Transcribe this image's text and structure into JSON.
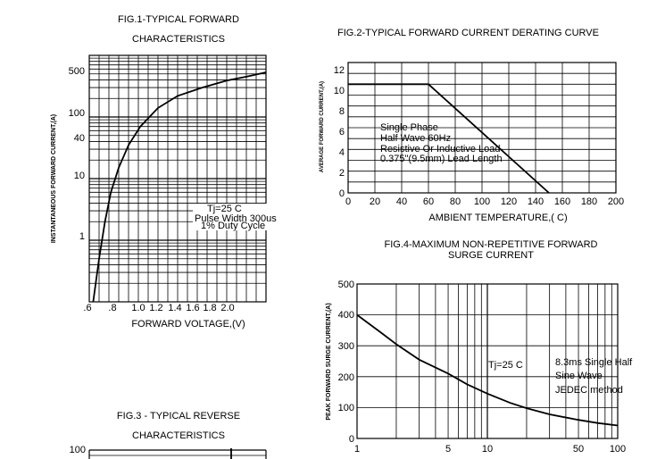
{
  "colors": {
    "grid": "#000000",
    "curve": "#000000",
    "background": "#ffffff"
  },
  "chart_data": [
    {
      "id": "fig1",
      "type": "line",
      "title": "FIG.1-TYPICAL FORWARD",
      "subtitle": "CHARACTERISTICS",
      "xlabel": "FORWARD VOLTAGE,(V)",
      "ylabel": "INSTANTANEOUS FORWARD CURRENT,(A)",
      "x_scale": "linear",
      "y_scale": "log",
      "xlim": [
        0.6,
        2.4
      ],
      "ylim": [
        0.1,
        1000
      ],
      "x_ticks": [
        ".6",
        ".8",
        "1.0",
        "1.2",
        "1.4",
        "1.6",
        "1.8",
        "2.0"
      ],
      "y_ticks": [
        "1",
        "10",
        "40",
        "100",
        "500"
      ],
      "grid": true,
      "annotations": [
        "Tj=25 C",
        "Pulse Width 300us",
        "1% Duty Cycle"
      ],
      "series": [
        {
          "x": [
            0.64,
            0.7,
            0.76,
            0.82,
            0.9,
            1.0,
            1.12,
            1.3,
            1.5,
            1.75,
            2.0,
            2.2,
            2.4
          ],
          "y": [
            0.1,
            0.5,
            2,
            6,
            15,
            35,
            70,
            140,
            220,
            300,
            390,
            450,
            530
          ]
        }
      ]
    },
    {
      "id": "fig2",
      "type": "line",
      "title": "FIG.2-TYPICAL FORWARD CURRENT DERATING CURVE",
      "xlabel": "AMBIENT TEMPERATURE,( C)",
      "ylabel": "AVERAGE FORWARD CURRENT,(A)",
      "xlim": [
        0,
        200
      ],
      "ylim": [
        0,
        12
      ],
      "x_ticks": [
        "0",
        "20",
        "40",
        "60",
        "80",
        "100",
        "120",
        "140",
        "160",
        "180",
        "200"
      ],
      "y_ticks": [
        "0",
        "2",
        "4",
        "6",
        "8",
        "10",
        "12"
      ],
      "grid": true,
      "annotations": [
        "Single Phase",
        "Half Wave 60Hz",
        "Resistive Or Inductive Load",
        "0.375\"(9.5mm) Lead Length"
      ],
      "series": [
        {
          "x": [
            0,
            60,
            150
          ],
          "y": [
            10,
            10,
            0
          ]
        }
      ]
    },
    {
      "id": "fig3",
      "type": "line",
      "title": "FIG.3 - TYPICAL REVERSE",
      "subtitle": "CHARACTERISTICS",
      "y_ticks": [
        "100"
      ],
      "grid": true
    },
    {
      "id": "fig4",
      "type": "line",
      "title": "FIG.4-MAXIMUM NON-REPETITIVE FORWARD",
      "subtitle": "SURGE CURRENT",
      "ylabel": "PEAK FORWARD SURGE CURRENT,(A)",
      "x_scale": "log",
      "xlim": [
        1,
        100
      ],
      "ylim": [
        0,
        500
      ],
      "x_ticks": [
        "1",
        "5",
        "10",
        "50",
        "100"
      ],
      "y_ticks": [
        "0",
        "100",
        "200",
        "300",
        "400",
        "500"
      ],
      "grid": true,
      "annotations": [
        "Tj=25 C",
        "8.3ms Single Half",
        "Sine Wave",
        "JEDEC method"
      ],
      "series": [
        {
          "x": [
            1,
            1.5,
            2,
            3,
            5,
            7,
            10,
            15,
            20,
            30,
            50,
            70,
            100
          ],
          "y": [
            400,
            345,
            305,
            255,
            210,
            175,
            145,
            115,
            98,
            78,
            60,
            50,
            42
          ]
        }
      ]
    }
  ]
}
